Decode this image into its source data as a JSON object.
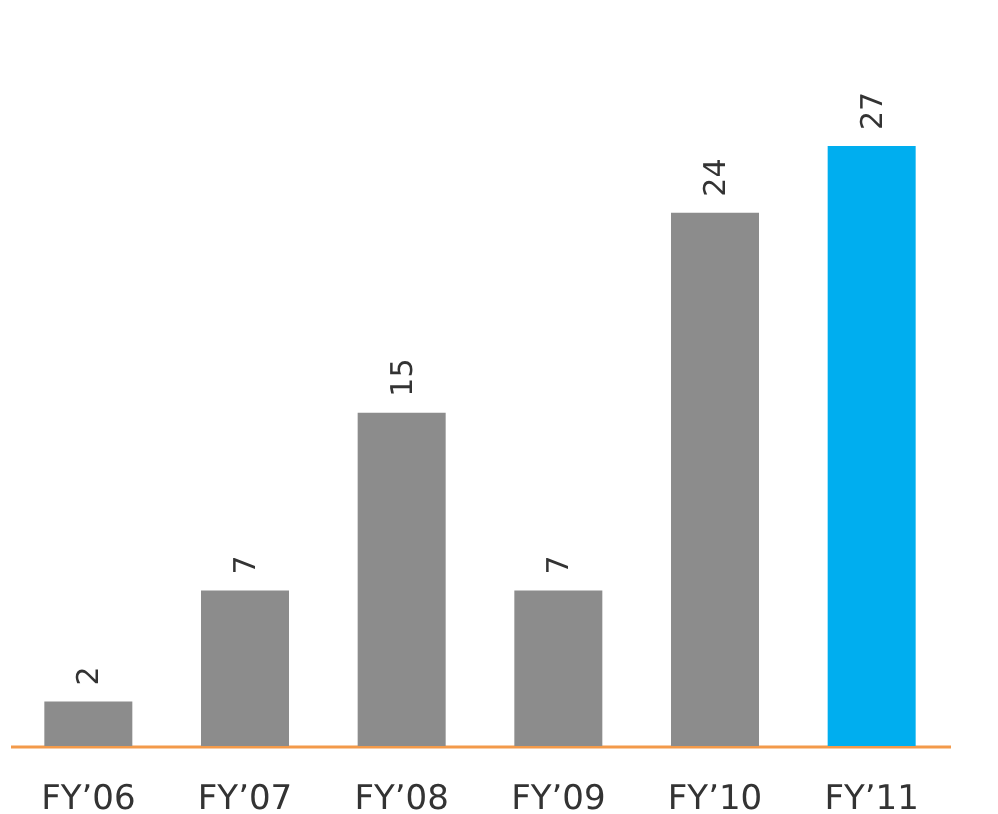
{
  "chart_data": {
    "type": "bar",
    "categories": [
      "FY’06",
      "FY’07",
      "FY’08",
      "FY’09",
      "FY’10",
      "FY’11"
    ],
    "values": [
      2,
      7,
      15,
      7,
      24,
      27
    ],
    "colors": [
      "#8c8c8c",
      "#8c8c8c",
      "#8c8c8c",
      "#8c8c8c",
      "#8c8c8c",
      "#00aeef"
    ],
    "data_labels": true,
    "tick_labels": "x",
    "grid": false
  }
}
